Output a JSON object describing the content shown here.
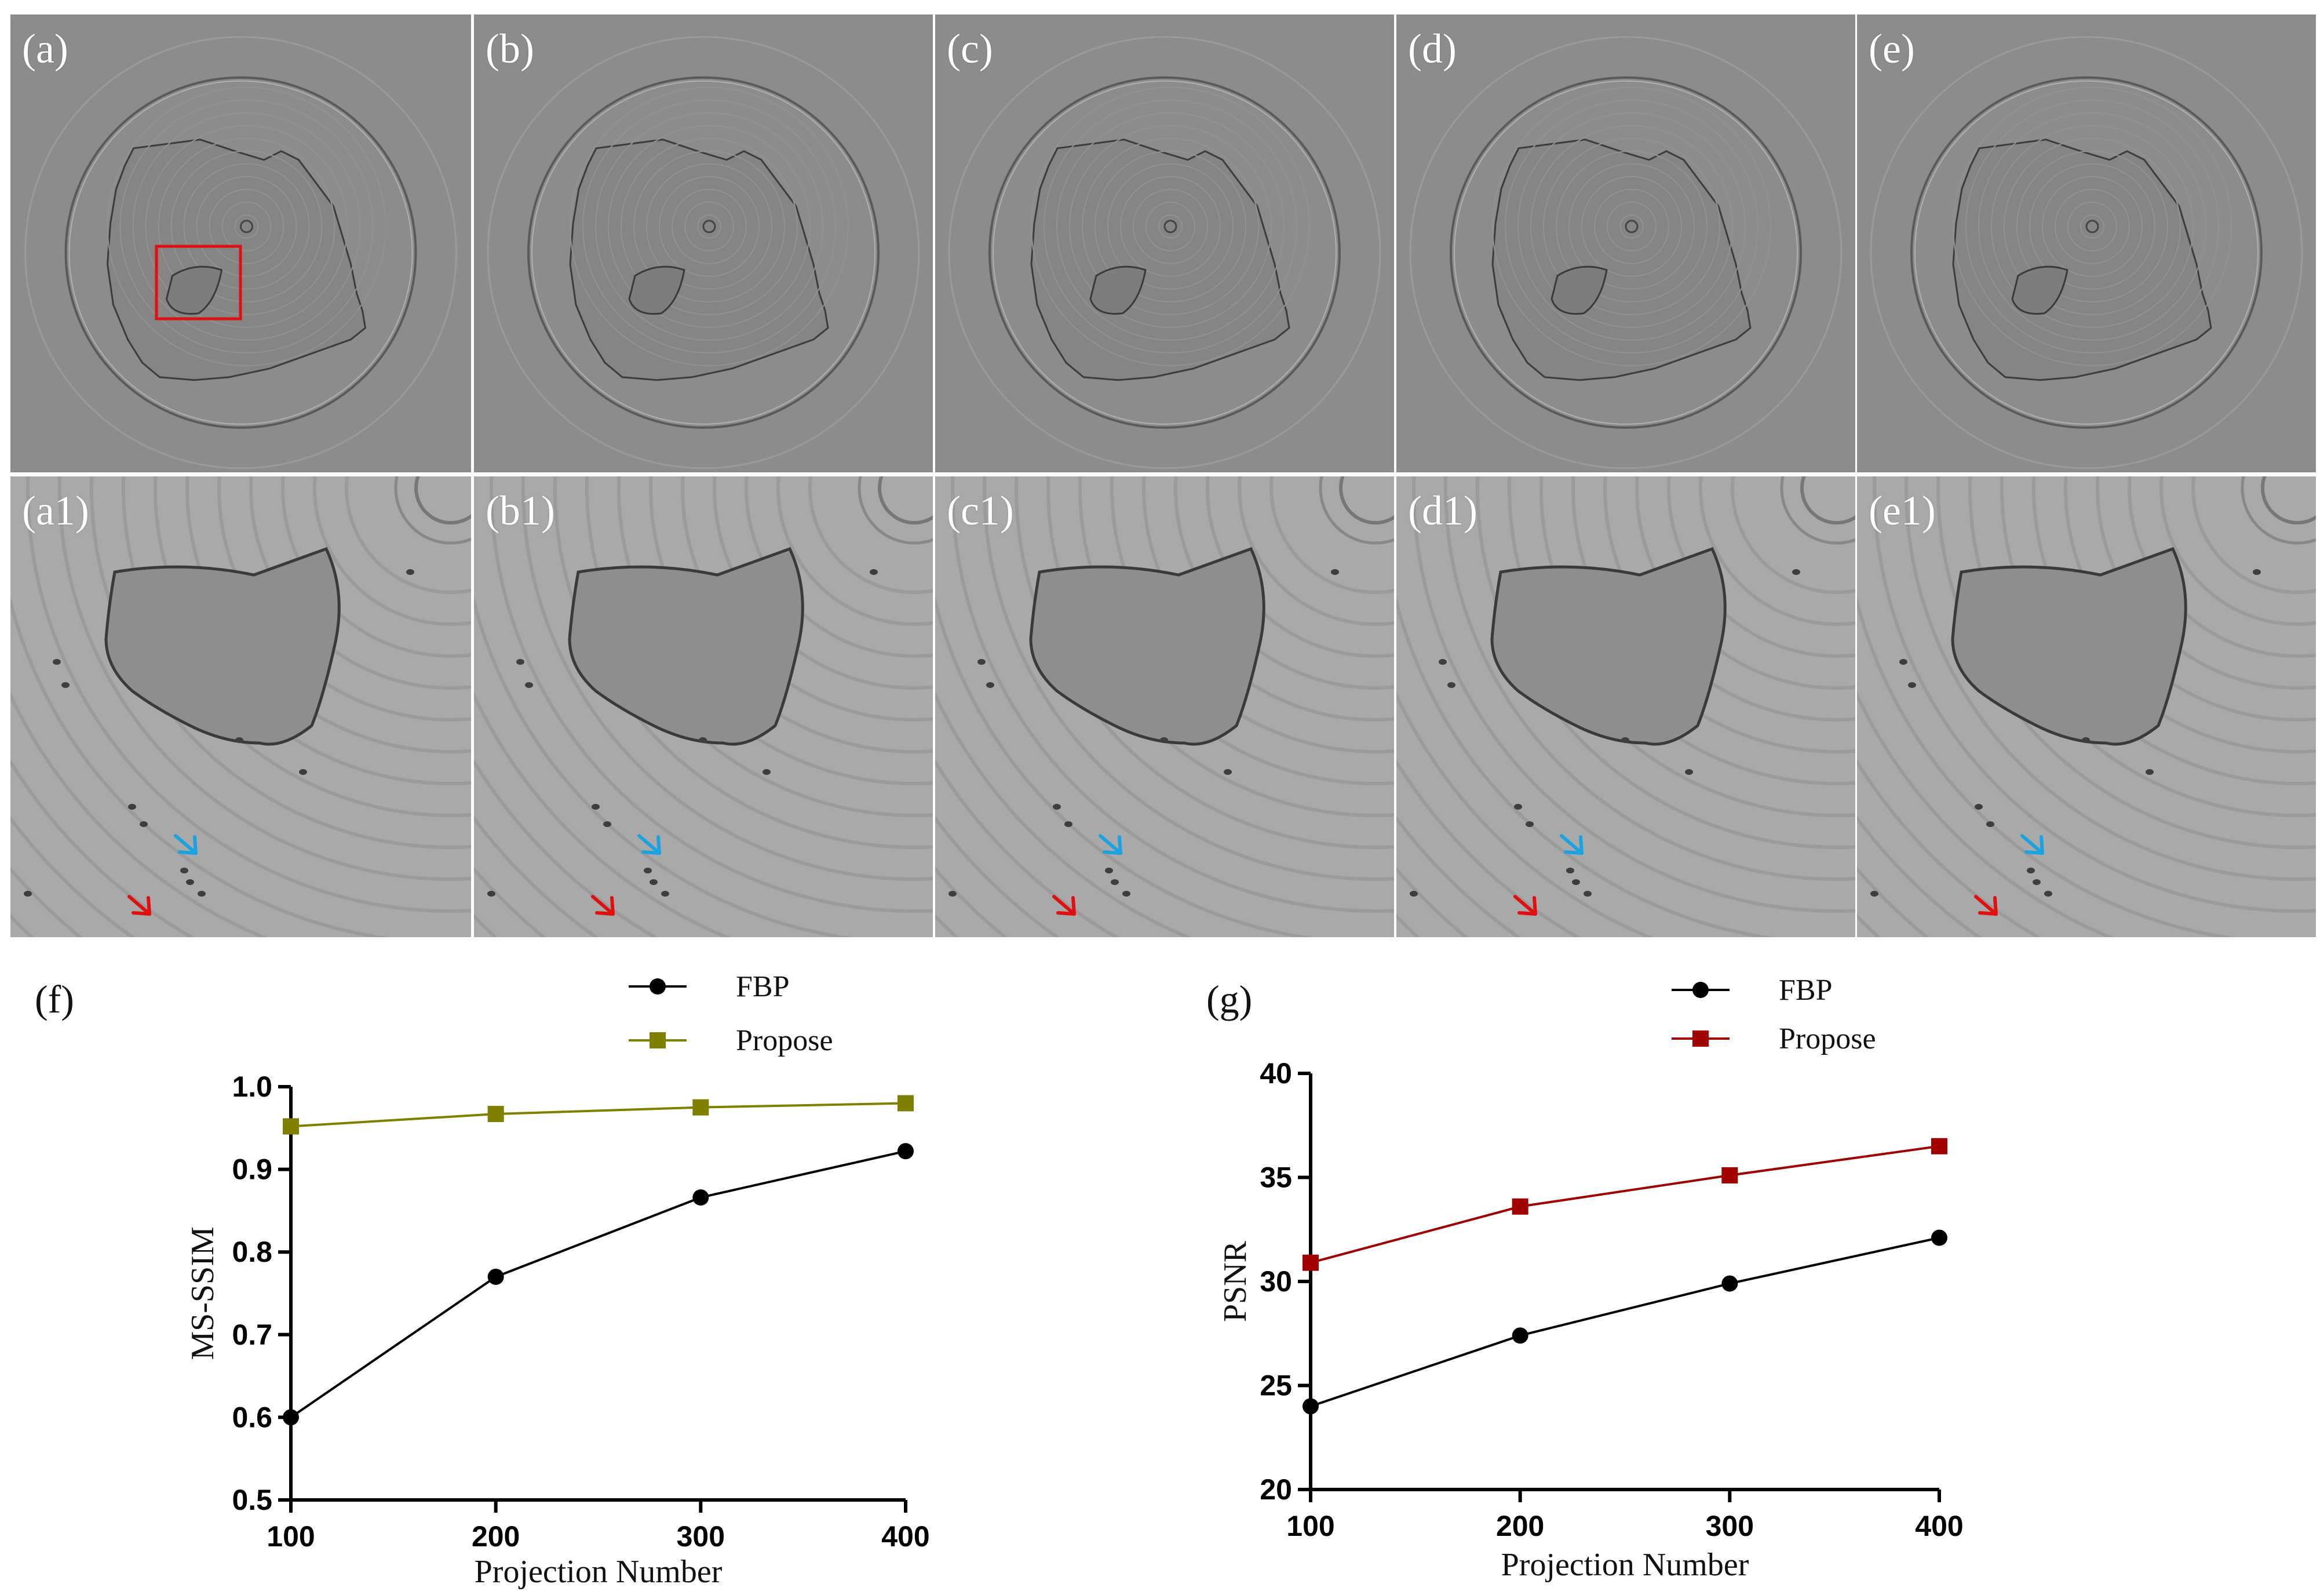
{
  "panels_top": [
    {
      "id": "a",
      "label": "(a)",
      "roi_box": true
    },
    {
      "id": "b",
      "label": "(b)",
      "roi_box": false
    },
    {
      "id": "c",
      "label": "(c)",
      "roi_box": false
    },
    {
      "id": "d",
      "label": "(d)",
      "roi_box": false
    },
    {
      "id": "e",
      "label": "(e)",
      "roi_box": false
    }
  ],
  "panels_zoom": [
    {
      "id": "a1",
      "label": "(a1)"
    },
    {
      "id": "b1",
      "label": "(b1)"
    },
    {
      "id": "c1",
      "label": "(c1)"
    },
    {
      "id": "d1",
      "label": "(d1)"
    },
    {
      "id": "e1",
      "label": "(e1)"
    }
  ],
  "colors": {
    "panel_bg": "#8c8c8c",
    "roi_box": "#e01010",
    "arrow_blue": "#1aa3e0",
    "arrow_red": "#e01010",
    "fbp": "#000000",
    "propose_f": "#808000",
    "propose_g": "#a00000"
  },
  "chart_data": [
    {
      "id": "f",
      "panel_label": "(f)",
      "type": "line",
      "title": "",
      "xlabel": "Projection Number",
      "ylabel": "MS-SSIM",
      "x": [
        100,
        200,
        300,
        400
      ],
      "xticks": [
        "100",
        "200",
        "300",
        "400"
      ],
      "yticks": [
        "0.5",
        "0.6",
        "0.7",
        "0.8",
        "0.9",
        "1.0"
      ],
      "xlim": [
        100,
        400
      ],
      "ylim": [
        0.5,
        1.0
      ],
      "legend_position": "top",
      "series": [
        {
          "name": "FBP",
          "marker": "circle",
          "color": "#000000",
          "values": [
            0.6,
            0.77,
            0.866,
            0.922
          ]
        },
        {
          "name": "Propose",
          "marker": "square",
          "color": "#808000",
          "values": [
            0.952,
            0.967,
            0.975,
            0.98
          ]
        }
      ]
    },
    {
      "id": "g",
      "panel_label": "(g)",
      "type": "line",
      "title": "",
      "xlabel": "Projection Number",
      "ylabel": "PSNR",
      "x": [
        100,
        200,
        300,
        400
      ],
      "xticks": [
        "100",
        "200",
        "300",
        "400"
      ],
      "yticks": [
        "20",
        "25",
        "30",
        "35",
        "40"
      ],
      "xlim": [
        100,
        400
      ],
      "ylim": [
        20,
        40
      ],
      "legend_position": "top",
      "series": [
        {
          "name": "FBP",
          "marker": "circle",
          "color": "#000000",
          "values": [
            24.0,
            27.4,
            29.9,
            32.1
          ]
        },
        {
          "name": "Propose",
          "marker": "square",
          "color": "#a00000",
          "values": [
            30.9,
            33.6,
            35.1,
            36.5
          ]
        }
      ]
    }
  ]
}
